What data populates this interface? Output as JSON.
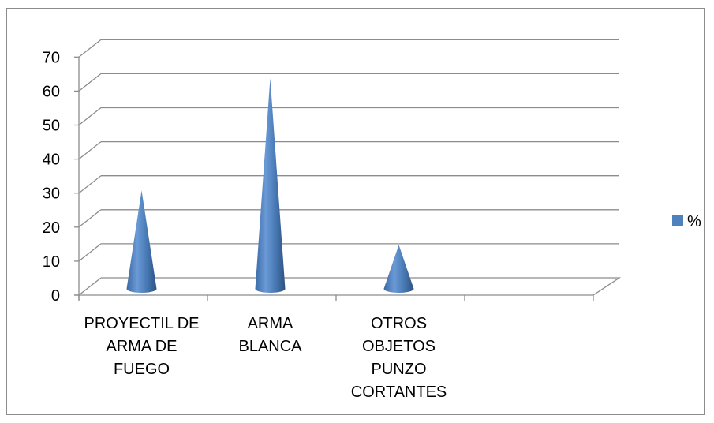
{
  "chart_data": {
    "type": "bar",
    "bar_shape": "cone",
    "style": "3d",
    "categories": [
      "PROYECTIL DE\nARMA DE\nFUEGO",
      "ARMA\nBLANCA",
      "OTROS\nOBJETOS\nPUNZO\nCORTANTES",
      ""
    ],
    "series": [
      {
        "name": "%",
        "values": [
          28,
          61,
          12,
          null
        ],
        "color": "#4f81bd"
      }
    ],
    "yticks": [
      "0",
      "10",
      "20",
      "30",
      "40",
      "50",
      "60",
      "70"
    ],
    "ylim": [
      0,
      70
    ],
    "grid": true,
    "legend": "right"
  }
}
